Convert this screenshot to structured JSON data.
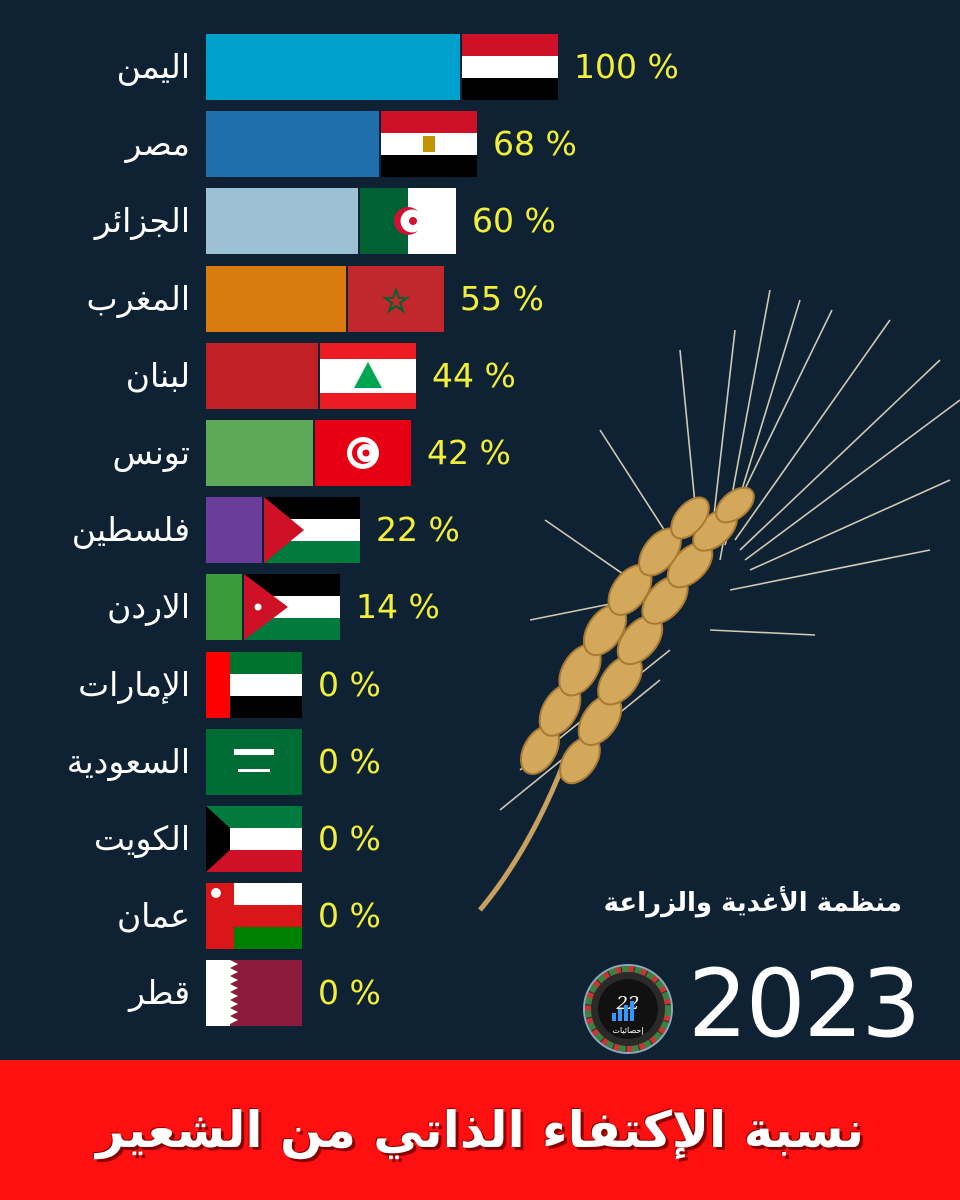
{
  "chart_data": {
    "type": "bar",
    "title": "نسبة الإكتفاء الذاتي من الشعير",
    "categories": [
      "اليمن",
      "مصر",
      "الجزائر",
      "المغرب",
      "لبنان",
      "تونس",
      "فلسطين",
      "الاردن",
      "الإمارات",
      "السعودية",
      "الكويت",
      "عمان",
      "قطر"
    ],
    "values": [
      100,
      68,
      60,
      55,
      44,
      42,
      22,
      14,
      0,
      0,
      0,
      0,
      0
    ],
    "value_labels": [
      "100 %",
      "68 %",
      "60 %",
      "55 %",
      "44 %",
      "42 %",
      "22 %",
      "14 %",
      "0 %",
      "0 %",
      "0 %",
      "0 %",
      "0 %"
    ],
    "bar_colors": [
      "#00a0cc",
      "#1f6fad",
      "#9cc0d4",
      "#d97b0f",
      "#c02026",
      "#5ea85a",
      "#6a3d9a",
      "#3a9a3a",
      "#000000",
      "#000000",
      "#000000",
      "#000000",
      "#000000"
    ],
    "flags": [
      "yemen-flag",
      "egypt-flag",
      "algeria-flag",
      "morocco-flag",
      "lebanon-flag",
      "tunisia-flag",
      "palestine-flag",
      "jordan-flag",
      "uae-flag",
      "saudi-flag",
      "kuwait-flag",
      "oman-flag",
      "qatar-flag"
    ],
    "xlim": [
      0,
      100
    ],
    "orientation": "horizontal",
    "value_label_color": "#f2ef3a",
    "background": "#0f2233"
  },
  "source": "منظمة الأغدية والزراعة",
  "year": "2023",
  "banner": {
    "title": "نسبة الإكتفاء الذاتي من الشعير",
    "color": "#ff1010"
  },
  "logo": {
    "text_number": "22",
    "text_label": "إحصائيات"
  }
}
